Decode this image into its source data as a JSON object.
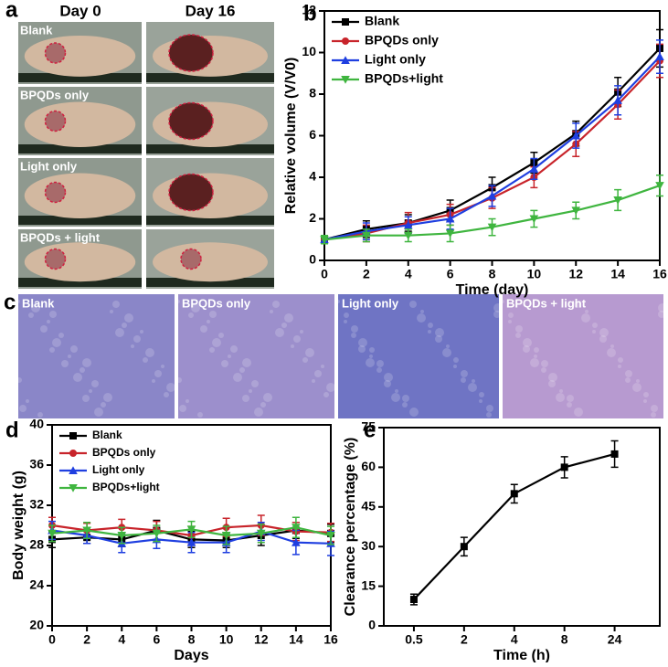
{
  "figure": {
    "a": {
      "label": "a",
      "columns": [
        "Day 0",
        "Day 16"
      ],
      "rows": [
        "Blank",
        "BPQDs only",
        "Light only",
        "BPQDs + light"
      ]
    },
    "c": {
      "label": "c",
      "images": [
        "Blank",
        "BPQDs only",
        "Light only",
        "BPQDs + light"
      ]
    }
  },
  "chart_data": [
    {
      "type": "line",
      "panel": "b",
      "x_label": "Time (day)",
      "y_label": "Relative volume (V/V0)",
      "x": [
        0,
        2,
        4,
        6,
        8,
        10,
        12,
        14,
        16
      ],
      "xlim": [
        0,
        16
      ],
      "xticks": [
        0,
        2,
        4,
        6,
        8,
        10,
        12,
        14,
        16
      ],
      "ylim": [
        0,
        12
      ],
      "yticks": [
        0,
        2,
        4,
        6,
        8,
        10,
        12
      ],
      "grid": false,
      "legend": "upper left",
      "series": [
        {
          "name": "Blank",
          "color": "#000000",
          "marker": "square",
          "values": [
            1,
            1.5,
            1.8,
            2.4,
            3.5,
            4.7,
            6.1,
            8.1,
            10.2
          ],
          "errors": [
            0.2,
            0.4,
            0.4,
            0.5,
            0.5,
            0.5,
            0.6,
            0.7,
            0.9
          ]
        },
        {
          "name": "BPQDs only",
          "color": "#c8242b",
          "marker": "circle",
          "values": [
            1,
            1.3,
            1.8,
            2.2,
            3.0,
            4.0,
            5.6,
            7.5,
            9.6
          ],
          "errors": [
            0.2,
            0.4,
            0.5,
            0.5,
            0.5,
            0.5,
            0.6,
            0.7,
            0.8
          ]
        },
        {
          "name": "Light only",
          "color": "#1f3fe0",
          "marker": "triangle",
          "values": [
            1,
            1.4,
            1.7,
            2.0,
            3.1,
            4.4,
            6.0,
            7.7,
            9.8
          ],
          "errors": [
            0.2,
            0.4,
            0.4,
            0.5,
            0.5,
            0.5,
            0.6,
            0.7,
            0.8
          ]
        },
        {
          "name": "BPQDs+light",
          "color": "#3fb53f",
          "marker": "triangle-down",
          "values": [
            1,
            1.2,
            1.2,
            1.3,
            1.6,
            2.0,
            2.4,
            2.9,
            3.6
          ],
          "errors": [
            0.2,
            0.3,
            0.3,
            0.4,
            0.4,
            0.4,
            0.4,
            0.5,
            0.5
          ]
        }
      ]
    },
    {
      "type": "line",
      "panel": "d",
      "x_label": "Days",
      "y_label": "Body weight (g)",
      "x": [
        0,
        2,
        4,
        6,
        8,
        10,
        12,
        14,
        16
      ],
      "xlim": [
        0,
        16
      ],
      "xticks": [
        0,
        2,
        4,
        6,
        8,
        10,
        12,
        14,
        16
      ],
      "ylim": [
        20,
        40
      ],
      "yticks": [
        20,
        24,
        28,
        32,
        36,
        40
      ],
      "grid": false,
      "legend": "upper left",
      "series": [
        {
          "name": "Blank",
          "color": "#000000",
          "marker": "square",
          "values": [
            28.6,
            28.8,
            28.6,
            29.5,
            28.6,
            28.5,
            29.0,
            29.5,
            29.2
          ],
          "errors": [
            0.8,
            0.6,
            0.7,
            1.0,
            0.8,
            0.7,
            1.0,
            0.8,
            0.9
          ]
        },
        {
          "name": "BPQDs only",
          "color": "#c8242b",
          "marker": "circle",
          "values": [
            30.0,
            29.5,
            29.8,
            29.5,
            29.0,
            29.8,
            30.0,
            29.4,
            29.3
          ],
          "errors": [
            0.8,
            0.7,
            0.8,
            0.9,
            0.9,
            0.9,
            1.0,
            0.9,
            0.9
          ]
        },
        {
          "name": "Light only",
          "color": "#1f3fe0",
          "marker": "triangle",
          "values": [
            29.5,
            29.0,
            28.2,
            28.6,
            28.3,
            28.3,
            29.4,
            28.3,
            28.2
          ],
          "errors": [
            0.9,
            0.8,
            0.9,
            0.9,
            1.0,
            1.0,
            0.9,
            1.2,
            1.2
          ]
        },
        {
          "name": "BPQDs+light",
          "color": "#3fb53f",
          "marker": "triangle-down",
          "values": [
            29.2,
            29.5,
            29.0,
            29.2,
            29.6,
            29.0,
            29.2,
            29.8,
            29.0
          ],
          "errors": [
            0.8,
            0.8,
            0.8,
            0.8,
            0.8,
            0.9,
            0.9,
            1.0,
            0.9
          ]
        }
      ]
    },
    {
      "type": "line",
      "panel": "e",
      "x_label": "Time (h)",
      "y_label": "Clearance percentage (%)",
      "categories": [
        "0.5",
        "2",
        "4",
        "8",
        "24"
      ],
      "ylim": [
        0,
        75
      ],
      "yticks": [
        0,
        15,
        30,
        45,
        60,
        75
      ],
      "grid": false,
      "color": "#000000",
      "marker": "square",
      "values": [
        10,
        30,
        50,
        60,
        65
      ],
      "errors": [
        2,
        3.5,
        3.5,
        4,
        5
      ]
    }
  ]
}
